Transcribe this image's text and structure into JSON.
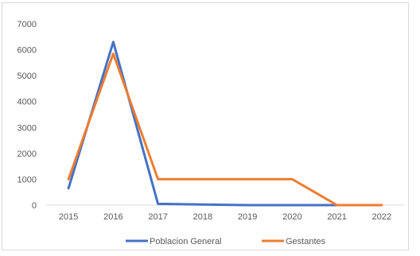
{
  "chart_data": {
    "type": "line",
    "x": [
      "2015",
      "2016",
      "2017",
      "2018",
      "2019",
      "2020",
      "2021",
      "2022"
    ],
    "yticks": [
      0,
      1000,
      2000,
      3000,
      4000,
      5000,
      6000,
      7000
    ],
    "ylim": [
      0,
      7000
    ],
    "grid": false,
    "legend_position": "bottom",
    "series": [
      {
        "name": "Poblacion General",
        "color": "#4472C4",
        "values": [
          650,
          6300,
          50,
          20,
          0,
          0,
          0,
          null
        ]
      },
      {
        "name": "Gestantes",
        "color": "#ED7D31",
        "values": [
          1000,
          5850,
          1000,
          1000,
          1000,
          1000,
          0,
          0
        ]
      }
    ]
  }
}
